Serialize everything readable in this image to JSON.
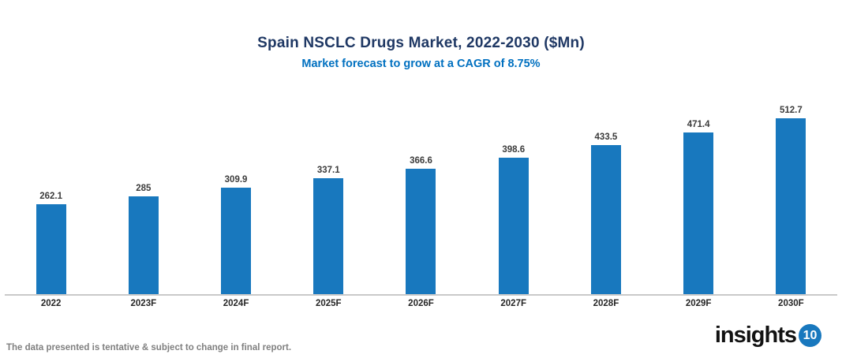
{
  "chart": {
    "title": "Spain NSCLC Drugs Market, 2022-2030 ($Mn)",
    "subtitle": "Market forecast to grow at a CAGR of 8.75%"
  },
  "chart_data": {
    "type": "bar",
    "categories": [
      "2022",
      "2023F",
      "2024F",
      "2025F",
      "2026F",
      "2027F",
      "2028F",
      "2029F",
      "2030F"
    ],
    "values": [
      262.1,
      285,
      309.9,
      337.1,
      366.6,
      398.6,
      433.5,
      471.4,
      512.7
    ],
    "title": "Spain NSCLC Drugs Market, 2022-2030 ($Mn)",
    "subtitle": "Market forecast to grow at a CAGR of 8.75%",
    "xlabel": "",
    "ylabel": "",
    "ylim": [
      0,
      550
    ],
    "grid": false,
    "legend": false,
    "value_labels_shown": true,
    "bar_color": "#1878BE"
  },
  "footer": {
    "disclaimer": "The data presented is tentative & subject to change in final report.",
    "logo_text": "insights",
    "logo_number": "10"
  },
  "colors": {
    "title_navy": "#1F3864",
    "subtitle_blue": "#0070C0",
    "bar_blue": "#1878BE",
    "axis_gray": "#C9C9C9",
    "disclaimer_gray": "#808080",
    "value_label_gray": "#3b3b3b"
  }
}
